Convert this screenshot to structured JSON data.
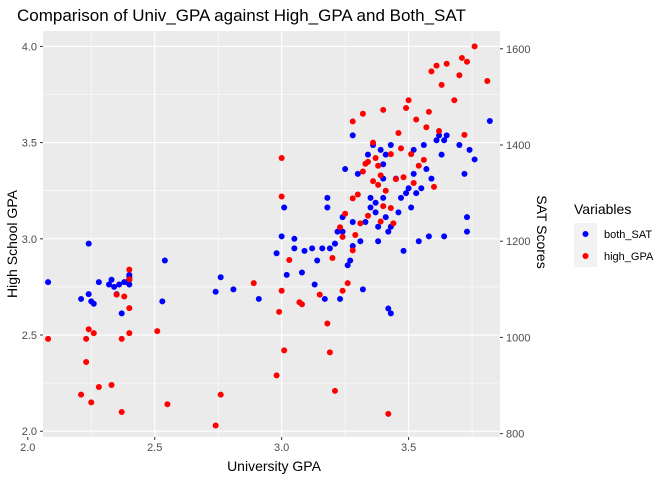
{
  "chart_data": {
    "type": "scatter",
    "title": "Comparison of Univ_GPA against High_GPA and Both_SAT",
    "xlabel": "University GPA",
    "ylabel": "High School GPA",
    "y2label": "SAT Scores",
    "xlim": [
      2.06,
      3.86
    ],
    "ylim": [
      1.97,
      4.08
    ],
    "y2lim": [
      793,
      1637
    ],
    "x_ticks": [
      "2.0",
      "2.5",
      "3.0",
      "3.5"
    ],
    "y_ticks": [
      "2.0",
      "2.5",
      "3.0",
      "3.5",
      "4.0"
    ],
    "y2_ticks": [
      "800",
      "1000",
      "1200",
      "1400",
      "1600"
    ],
    "grid": true,
    "background": "#ebebeb",
    "legend": {
      "title": "Variables",
      "position": "right",
      "entries": [
        {
          "label": "both_SAT",
          "color": "#0000ff"
        },
        {
          "label": "high_GPA",
          "color": "#ff0000"
        }
      ]
    },
    "series": [
      {
        "name": "both_SAT",
        "color": "#0000ff",
        "axis": "right",
        "points": [
          [
            2.08,
            1115
          ],
          [
            2.21,
            1080
          ],
          [
            2.24,
            1090
          ],
          [
            2.24,
            1195
          ],
          [
            2.25,
            1075
          ],
          [
            2.26,
            1070
          ],
          [
            2.28,
            1115
          ],
          [
            2.32,
            1110
          ],
          [
            2.33,
            1120
          ],
          [
            2.34,
            1105
          ],
          [
            2.35,
            1090
          ],
          [
            2.36,
            1110
          ],
          [
            2.37,
            1050
          ],
          [
            2.38,
            1115
          ],
          [
            2.39,
            1115
          ],
          [
            2.4,
            1125
          ],
          [
            2.4,
            1130
          ],
          [
            2.4,
            1120
          ],
          [
            2.4,
            1110
          ],
          [
            2.53,
            1075
          ],
          [
            2.54,
            1160
          ],
          [
            2.74,
            1095
          ],
          [
            2.76,
            1125
          ],
          [
            2.81,
            1100
          ],
          [
            2.91,
            1080
          ],
          [
            2.98,
            1175
          ],
          [
            3.0,
            1210
          ],
          [
            3.01,
            1270
          ],
          [
            3.02,
            1130
          ],
          [
            3.05,
            1205
          ],
          [
            3.05,
            1185
          ],
          [
            3.08,
            1135
          ],
          [
            3.09,
            1180
          ],
          [
            3.12,
            1185
          ],
          [
            3.13,
            1110
          ],
          [
            3.14,
            1160
          ],
          [
            3.16,
            1185
          ],
          [
            3.17,
            1080
          ],
          [
            3.18,
            1290
          ],
          [
            3.18,
            1270
          ],
          [
            3.19,
            1185
          ],
          [
            3.21,
            1195
          ],
          [
            3.22,
            1220
          ],
          [
            3.23,
            1080
          ],
          [
            3.24,
            1220
          ],
          [
            3.24,
            1250
          ],
          [
            3.25,
            1350
          ],
          [
            3.26,
            1150
          ],
          [
            3.27,
            1160
          ],
          [
            3.28,
            1190
          ],
          [
            3.28,
            1240
          ],
          [
            3.28,
            1420
          ],
          [
            3.3,
            1340
          ],
          [
            3.31,
            1200
          ],
          [
            3.32,
            1100
          ],
          [
            3.33,
            1240
          ],
          [
            3.34,
            1380
          ],
          [
            3.35,
            1270
          ],
          [
            3.35,
            1290
          ],
          [
            3.36,
            1400
          ],
          [
            3.37,
            1280
          ],
          [
            3.37,
            1260
          ],
          [
            3.38,
            1200
          ],
          [
            3.38,
            1230
          ],
          [
            3.39,
            1390
          ],
          [
            3.4,
            1360
          ],
          [
            3.4,
            1330
          ],
          [
            3.4,
            1290
          ],
          [
            3.41,
            1380
          ],
          [
            3.41,
            1250
          ],
          [
            3.42,
            1060
          ],
          [
            3.43,
            1050
          ],
          [
            3.42,
            1220
          ],
          [
            3.43,
            1230
          ],
          [
            3.43,
            1400
          ],
          [
            3.45,
            1330
          ],
          [
            3.46,
            1260
          ],
          [
            3.47,
            1290
          ],
          [
            3.48,
            1180
          ],
          [
            3.49,
            1300
          ],
          [
            3.5,
            1310
          ],
          [
            3.51,
            1270
          ],
          [
            3.52,
            1390
          ],
          [
            3.52,
            1340
          ],
          [
            3.53,
            1300
          ],
          [
            3.54,
            1200
          ],
          [
            3.55,
            1310
          ],
          [
            3.56,
            1400
          ],
          [
            3.57,
            1350
          ],
          [
            3.58,
            1210
          ],
          [
            3.59,
            1330
          ],
          [
            3.61,
            1410
          ],
          [
            3.62,
            1420
          ],
          [
            3.63,
            1380
          ],
          [
            3.64,
            1410
          ],
          [
            3.64,
            1210
          ],
          [
            3.65,
            1420
          ],
          [
            3.7,
            1400
          ],
          [
            3.72,
            1340
          ],
          [
            3.73,
            1250
          ],
          [
            3.73,
            1220
          ],
          [
            3.74,
            1390
          ],
          [
            3.76,
            1370
          ],
          [
            3.82,
            1450
          ]
        ]
      },
      {
        "name": "high_GPA",
        "color": "#ff0000",
        "axis": "left",
        "points": [
          [
            2.08,
            2.48
          ],
          [
            2.21,
            2.19
          ],
          [
            2.23,
            2.36
          ],
          [
            2.23,
            2.48
          ],
          [
            2.24,
            2.53
          ],
          [
            2.25,
            2.15
          ],
          [
            2.26,
            2.51
          ],
          [
            2.28,
            2.23
          ],
          [
            2.33,
            2.24
          ],
          [
            2.35,
            2.71
          ],
          [
            2.37,
            2.1
          ],
          [
            2.37,
            2.48
          ],
          [
            2.38,
            2.7
          ],
          [
            2.4,
            2.64
          ],
          [
            2.4,
            2.84
          ],
          [
            2.4,
            2.51
          ],
          [
            2.4,
            2.79
          ],
          [
            2.51,
            2.52
          ],
          [
            2.55,
            2.14
          ],
          [
            2.74,
            2.03
          ],
          [
            2.76,
            2.19
          ],
          [
            2.89,
            2.77
          ],
          [
            2.98,
            2.29
          ],
          [
            2.99,
            2.62
          ],
          [
            3.0,
            2.73
          ],
          [
            3.0,
            3.22
          ],
          [
            3.0,
            3.42
          ],
          [
            3.01,
            2.42
          ],
          [
            3.03,
            2.89
          ],
          [
            3.07,
            2.67
          ],
          [
            3.08,
            2.66
          ],
          [
            3.15,
            2.71
          ],
          [
            3.18,
            2.56
          ],
          [
            3.19,
            2.41
          ],
          [
            3.2,
            2.9
          ],
          [
            3.21,
            2.21
          ],
          [
            3.23,
            3.06
          ],
          [
            3.24,
            2.73
          ],
          [
            3.24,
            3.01
          ],
          [
            3.25,
            3.13
          ],
          [
            3.26,
            2.77
          ],
          [
            3.28,
            3.61
          ],
          [
            3.28,
            3.21
          ],
          [
            3.28,
            2.94
          ],
          [
            3.29,
            3.02
          ],
          [
            3.3,
            3.23
          ],
          [
            3.31,
            3.08
          ],
          [
            3.32,
            3.35
          ],
          [
            3.32,
            3.65
          ],
          [
            3.33,
            3.39
          ],
          [
            3.34,
            3.12
          ],
          [
            3.34,
            3.4
          ],
          [
            3.36,
            3.5
          ],
          [
            3.36,
            3.3
          ],
          [
            3.37,
            3.42
          ],
          [
            3.38,
            3.28
          ],
          [
            3.38,
            3.38
          ],
          [
            3.39,
            3.09
          ],
          [
            3.39,
            3.33
          ],
          [
            3.4,
            3.67
          ],
          [
            3.4,
            3.17
          ],
          [
            3.41,
            3.25
          ],
          [
            3.42,
            2.09
          ],
          [
            3.43,
            3.44
          ],
          [
            3.43,
            3.16
          ],
          [
            3.44,
            3.08
          ],
          [
            3.45,
            3.31
          ],
          [
            3.46,
            3.55
          ],
          [
            3.47,
            3.47
          ],
          [
            3.48,
            3.32
          ],
          [
            3.49,
            3.68
          ],
          [
            3.5,
            3.72
          ],
          [
            3.51,
            3.44
          ],
          [
            3.52,
            3.29
          ],
          [
            3.53,
            3.62
          ],
          [
            3.54,
            3.38
          ],
          [
            3.56,
            3.41
          ],
          [
            3.57,
            3.58
          ],
          [
            3.58,
            3.66
          ],
          [
            3.59,
            3.87
          ],
          [
            3.6,
            3.27
          ],
          [
            3.61,
            3.9
          ],
          [
            3.62,
            3.56
          ],
          [
            3.63,
            3.8
          ],
          [
            3.65,
            3.91
          ],
          [
            3.68,
            3.72
          ],
          [
            3.7,
            3.85
          ],
          [
            3.71,
            3.94
          ],
          [
            3.72,
            3.54
          ],
          [
            3.73,
            3.92
          ],
          [
            3.76,
            4.0
          ],
          [
            3.81,
            3.82
          ]
        ]
      }
    ]
  }
}
